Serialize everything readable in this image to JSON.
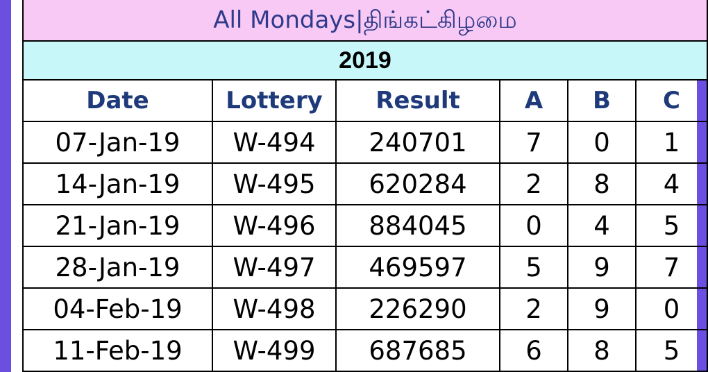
{
  "title": "All Mondays|திங்கட்கிழமை",
  "year": "2019",
  "colors": {
    "frame": "#6a4fe0",
    "title_background": "#f8c9f4",
    "year_background": "#c8f7f9",
    "header_text": "#1f3a7a"
  },
  "table": {
    "headers": {
      "date": "Date",
      "lottery": "Lottery",
      "result": "Result",
      "a": "A",
      "b": "B",
      "c": "C"
    },
    "rows": [
      {
        "date": "07-Jan-19",
        "lottery": "W-494",
        "result": "240701",
        "a": "7",
        "b": "0",
        "c": "1"
      },
      {
        "date": "14-Jan-19",
        "lottery": "W-495",
        "result": "620284",
        "a": "2",
        "b": "8",
        "c": "4"
      },
      {
        "date": "21-Jan-19",
        "lottery": "W-496",
        "result": "884045",
        "a": "0",
        "b": "4",
        "c": "5"
      },
      {
        "date": "28-Jan-19",
        "lottery": "W-497",
        "result": "469597",
        "a": "5",
        "b": "9",
        "c": "7"
      },
      {
        "date": "04-Feb-19",
        "lottery": "W-498",
        "result": "226290",
        "a": "2",
        "b": "9",
        "c": "0"
      },
      {
        "date": "11-Feb-19",
        "lottery": "W-499",
        "result": "687685",
        "a": "6",
        "b": "8",
        "c": "5"
      }
    ]
  }
}
